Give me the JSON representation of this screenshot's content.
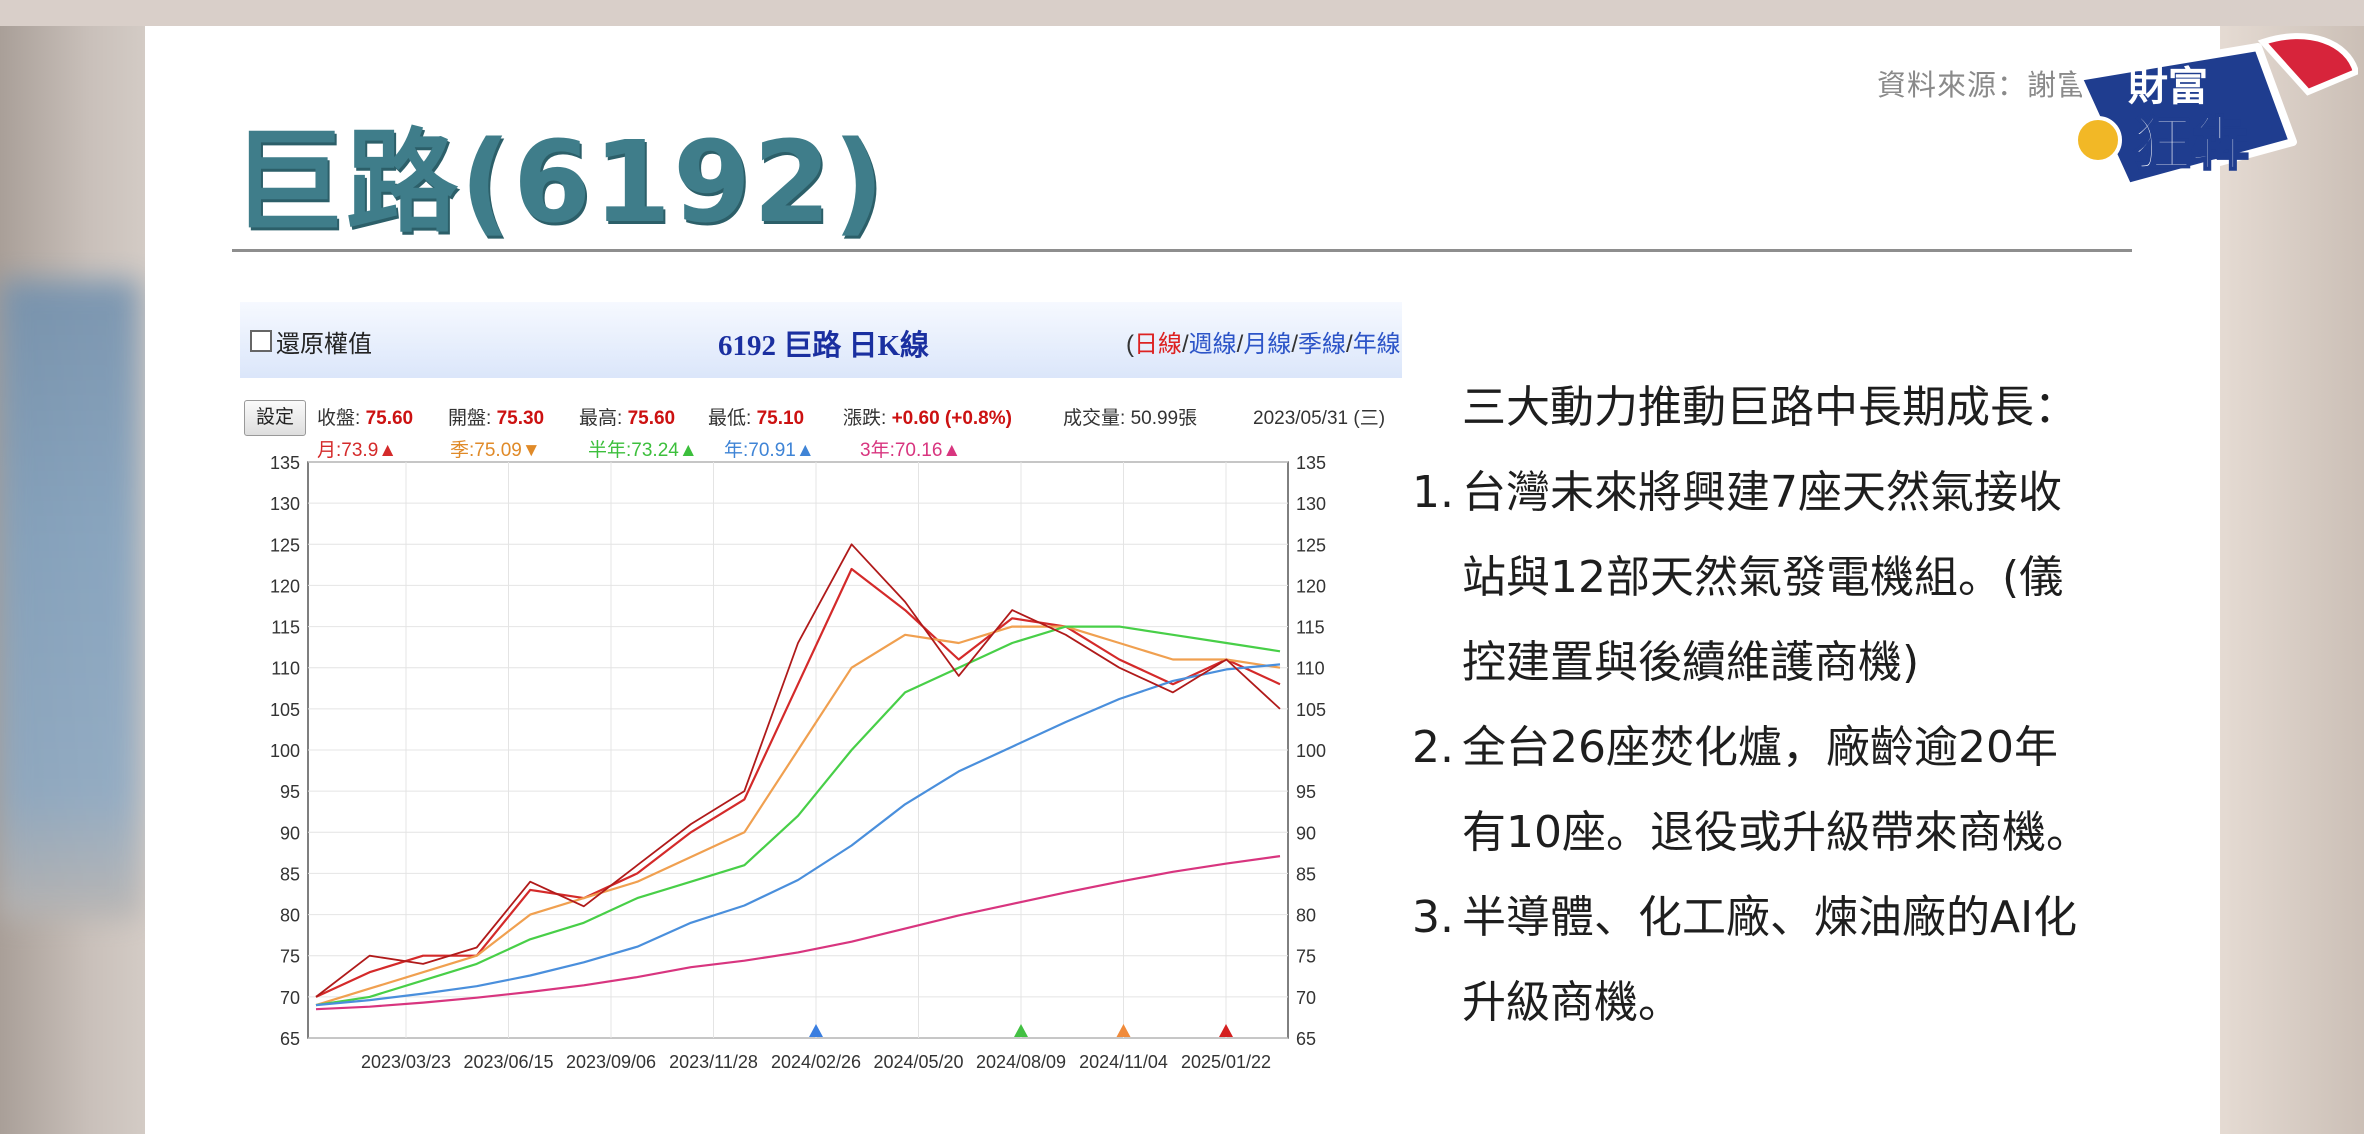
{
  "source_text": "資料來源：謝富",
  "page_title": "巨路(6192)",
  "logo": {
    "line1": "財富",
    "line2": "狂犇"
  },
  "chart_panel": {
    "restore_label": "還原權值",
    "title": "6192 巨路 日K線",
    "periods": [
      "日線",
      "週線",
      "月線",
      "季線",
      "年線"
    ],
    "active_period": "日線",
    "settings_label": "設定",
    "quote": {
      "close_label": "收盤:",
      "close": "75.60",
      "open_label": "開盤:",
      "open": "75.30",
      "high_label": "最高:",
      "high": "75.60",
      "low_label": "最低:",
      "low": "75.10",
      "change_label": "漲跌:",
      "change": "+0.60 (+0.8%)",
      "volume_label": "成交量:",
      "volume": "50.99張",
      "date": "2023/05/31 (三)"
    },
    "ma": {
      "month": "月:73.9▲",
      "quarter": "季:75.09▼",
      "half_year": "半年:73.24▲",
      "year": "年:70.91▲",
      "three_year": "3年:70.16▲"
    },
    "colors": {
      "month": "#d42a2a",
      "quarter": "#f0a050",
      "half_year": "#48cf48",
      "year": "#4a8fdc",
      "three_year": "#d8357f"
    }
  },
  "chart_data": {
    "type": "line",
    "ylim": [
      65,
      135
    ],
    "y_ticks": [
      "65",
      "70",
      "75",
      "80",
      "85",
      "90",
      "95",
      "100",
      "105",
      "110",
      "115",
      "120",
      "125",
      "130",
      "135"
    ],
    "x_tick_labels": [
      "2023/03/23",
      "2023/06/15",
      "2023/09/06",
      "2023/11/28",
      "2024/02/26",
      "2024/05/20",
      "2024/08/09",
      "2024/11/04",
      "2025/01/22"
    ],
    "x": [
      "2023/01",
      "2023/03",
      "2023/05",
      "2023/07",
      "2023/09",
      "2023/11",
      "2024/01",
      "2024/03",
      "2024/04",
      "2024/05",
      "2024/06",
      "2024/07",
      "2024/08",
      "2024/09",
      "2024/10",
      "2024/11",
      "2024/12",
      "2025/01",
      "2025/02"
    ],
    "series": [
      {
        "name": "price",
        "color": "#b01a1a",
        "values": [
          70,
          75,
          74,
          76,
          84,
          81,
          86,
          91,
          95,
          113,
          125,
          118,
          109,
          117,
          114,
          110,
          107,
          111,
          105
        ]
      },
      {
        "name": "月",
        "color": "#d42a2a",
        "values": [
          70,
          73,
          75,
          75,
          83,
          82,
          85,
          90,
          94,
          108,
          122,
          117,
          111,
          116,
          115,
          111,
          108,
          111,
          108
        ]
      },
      {
        "name": "季",
        "color": "#f0a050",
        "values": [
          69,
          71,
          73,
          75,
          80,
          82,
          84,
          87,
          90,
          100,
          110,
          114,
          113,
          115,
          115,
          113,
          111,
          111,
          110
        ]
      },
      {
        "name": "半年",
        "color": "#48cf48",
        "values": [
          69,
          70,
          72,
          74,
          77,
          79,
          82,
          84,
          86,
          92,
          100,
          107,
          110,
          113,
          115,
          115,
          114,
          113,
          112
        ]
      },
      {
        "name": "年",
        "color": "#4a8fdc",
        "values": [
          69,
          69.6,
          70.4,
          71.3,
          72.6,
          74.2,
          76.1,
          79,
          81.1,
          84.2,
          88.4,
          93.4,
          97.4,
          100.4,
          103.4,
          106.2,
          108.4,
          109.8,
          110.4
        ]
      },
      {
        "name": "3年",
        "color": "#d8357f",
        "values": [
          68.5,
          68.8,
          69.3,
          69.9,
          70.6,
          71.4,
          72.4,
          73.6,
          74.4,
          75.4,
          76.7,
          78.3,
          79.9,
          81.3,
          82.7,
          84,
          85.2,
          86.2,
          87.1
        ]
      }
    ],
    "markers": [
      {
        "x": "2024/02/26",
        "color": "#3a7ee0"
      },
      {
        "x": "2024/08/09",
        "color": "#43c043"
      },
      {
        "x": "2024/11/04",
        "color": "#f08a3a"
      },
      {
        "x": "2025/01/22",
        "color": "#d42020"
      }
    ]
  },
  "points": {
    "intro": "三大動力推動巨路中長期成長：",
    "items": [
      {
        "num": "1.",
        "lines": [
          "台灣未來將興建7座天然氣接收",
          "站與12部天然氣發電機組。(儀",
          "控建置與後續維護商機)"
        ]
      },
      {
        "num": "2.",
        "lines": [
          "全台26座焚化爐，廠齡逾20年",
          "有10座。退役或升級帶來商機。"
        ]
      },
      {
        "num": "3.",
        "lines": [
          "半導體、化工廠、煉油廠的AI化",
          "升級商機。"
        ]
      }
    ]
  }
}
